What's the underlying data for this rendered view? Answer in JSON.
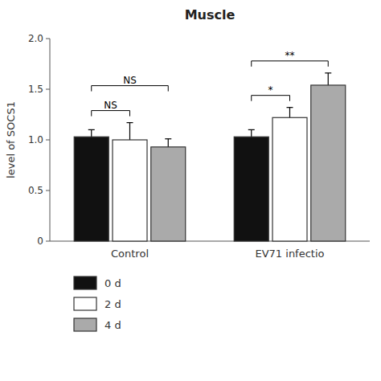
{
  "chart_data": {
    "type": "bar",
    "title": "Muscle",
    "ylabel": "level of SOCS1",
    "categories": [
      "Control",
      "EV71 infectio"
    ],
    "series": [
      {
        "name": "0 d",
        "color": "#111111",
        "values": [
          1.03,
          1.03
        ],
        "errors": [
          0.07,
          0.07
        ]
      },
      {
        "name": "2 d",
        "color": "#ffffff",
        "values": [
          1.0,
          1.22
        ],
        "errors": [
          0.17,
          0.1
        ]
      },
      {
        "name": "4 d",
        "color": "#aaaaaa",
        "values": [
          0.93,
          1.54
        ],
        "errors": [
          0.08,
          0.12
        ]
      }
    ],
    "ylim": [
      0,
      2.0
    ],
    "yticks": [
      0,
      0.5,
      {
        "value": 1.0,
        "label": "1.0"
      },
      1.5,
      {
        "value": 2.0,
        "label": "2.0"
      }
    ],
    "grid": false,
    "legend": "bottom",
    "annotations": [
      {
        "text": "NS",
        "category": "Control",
        "between": [
          "0 d",
          "2 d"
        ]
      },
      {
        "text": "NS",
        "category": "Control",
        "between": [
          "0 d",
          "4 d"
        ]
      },
      {
        "text": "*",
        "category": "EV71 infectio",
        "between": [
          "0 d",
          "2 d"
        ]
      },
      {
        "text": "**",
        "category": "EV71 infectio",
        "between": [
          "0 d",
          "4 d"
        ]
      }
    ]
  }
}
